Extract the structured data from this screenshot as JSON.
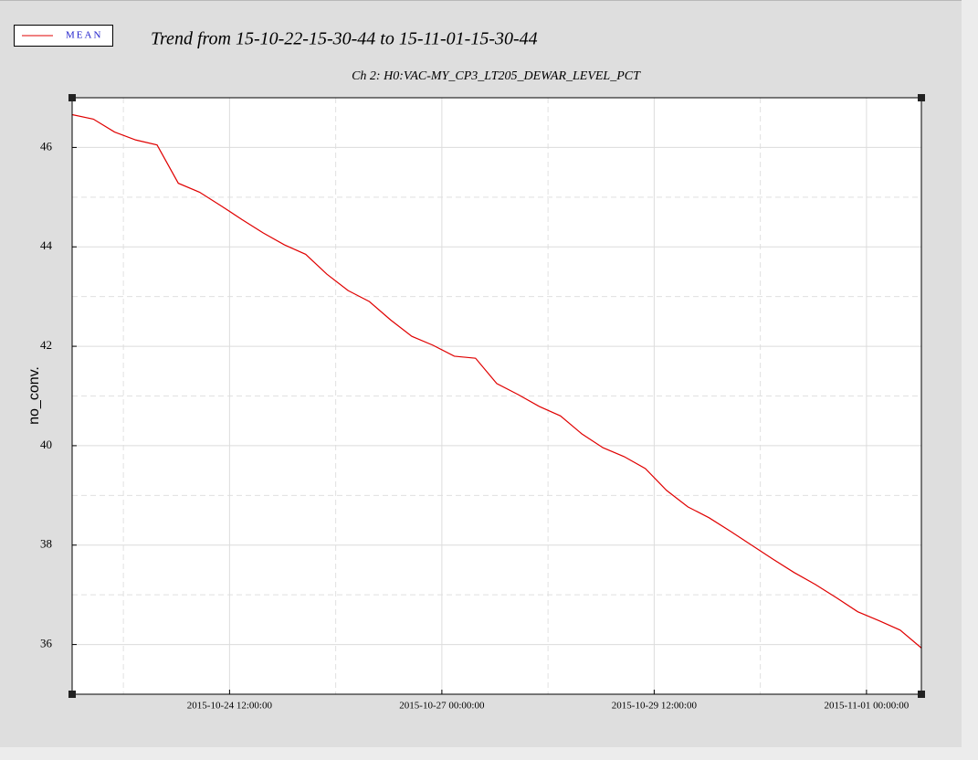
{
  "chart_data": {
    "type": "line",
    "title": "Trend from 15-10-22-15-30-44 to 15-11-01-15-30-44",
    "subtitle": "Ch 2: H0:VAC-MY_CP3_LT205_DEWAR_LEVEL_PCT",
    "y_label": "no_conv.",
    "legend": "top-left",
    "grid": true,
    "xlim": [
      "2015-10-22 15:30:44",
      "2015-11-01 15:30:44"
    ],
    "xticks": [
      "2015-10-24 12:00:00",
      "2015-10-27 00:00:00",
      "2015-10-29 12:00:00",
      "2015-11-01 00:00:00"
    ],
    "ylim": [
      35,
      47
    ],
    "yticks": [
      36,
      38,
      40,
      42,
      44,
      46
    ],
    "x": [
      "2015-10-22 15:30:44",
      "2015-10-22 21:30:44",
      "2015-10-23 03:30:44",
      "2015-10-23 09:30:44",
      "2015-10-23 15:30:44",
      "2015-10-23 21:30:44",
      "2015-10-24 03:30:44",
      "2015-10-24 09:30:44",
      "2015-10-24 15:30:44",
      "2015-10-24 21:30:44",
      "2015-10-25 03:30:44",
      "2015-10-25 09:30:44",
      "2015-10-25 15:30:44",
      "2015-10-25 21:30:44",
      "2015-10-26 03:30:44",
      "2015-10-26 09:30:44",
      "2015-10-26 15:30:44",
      "2015-10-26 21:30:44",
      "2015-10-27 03:30:44",
      "2015-10-27 09:30:44",
      "2015-10-27 15:30:44",
      "2015-10-27 21:30:44",
      "2015-10-28 03:30:44",
      "2015-10-28 09:30:44",
      "2015-10-28 15:30:44",
      "2015-10-28 21:30:44",
      "2015-10-29 03:30:44",
      "2015-10-29 09:30:44",
      "2015-10-29 15:30:44",
      "2015-10-29 21:30:44",
      "2015-10-30 03:30:44",
      "2015-10-30 09:30:44",
      "2015-10-30 15:30:44",
      "2015-10-30 21:30:44",
      "2015-10-31 03:30:44",
      "2015-10-31 09:30:44",
      "2015-10-31 15:30:44",
      "2015-10-31 21:30:44",
      "2015-11-01 03:30:44",
      "2015-11-01 09:30:44",
      "2015-11-01 15:30:44"
    ],
    "series": [
      {
        "name": "MEAN",
        "color": "#e00000",
        "values": [
          46.66,
          46.57,
          46.31,
          46.15,
          46.05,
          45.28,
          45.1,
          44.83,
          44.55,
          44.28,
          44.04,
          43.85,
          43.45,
          43.12,
          42.9,
          42.53,
          42.2,
          42.02,
          41.8,
          41.76,
          41.25,
          41.03,
          40.79,
          40.6,
          40.24,
          39.96,
          39.78,
          39.54,
          39.1,
          38.77,
          38.55,
          38.28,
          38.0,
          37.72,
          37.45,
          37.21,
          36.94,
          36.66,
          36.48,
          36.29,
          35.93
        ]
      }
    ]
  }
}
